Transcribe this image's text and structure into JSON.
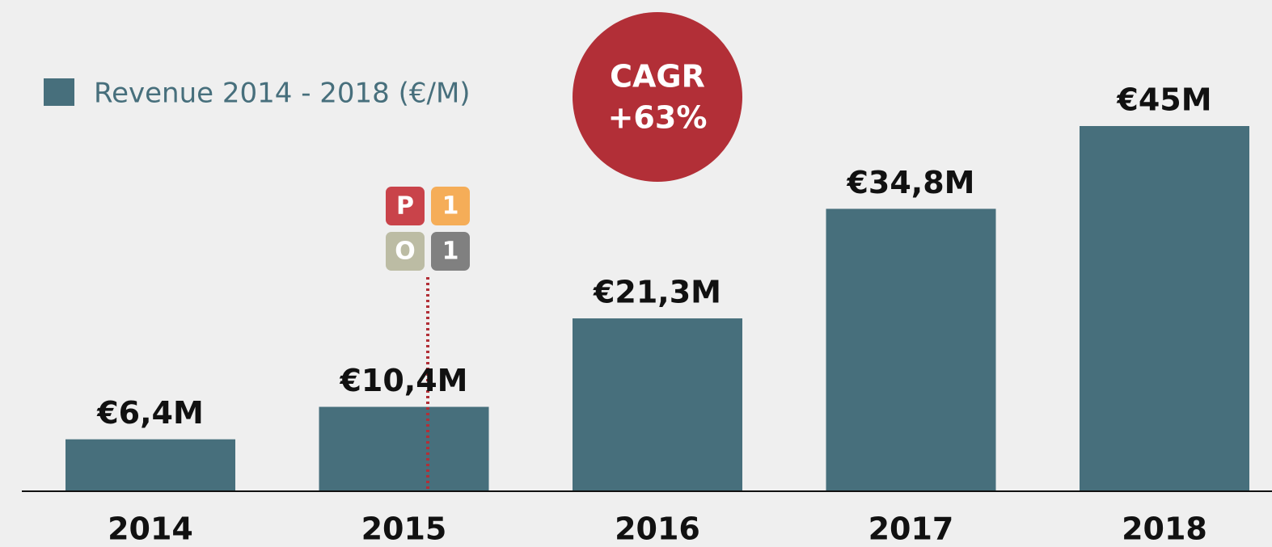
{
  "chart_data": {
    "type": "bar",
    "legend": "Revenue 2014 - 2018 (€/M)",
    "categories": [
      "2014",
      "2015",
      "2016",
      "2017",
      "2018"
    ],
    "values": [
      6.4,
      10.4,
      21.3,
      34.8,
      45
    ],
    "value_labels": [
      "€6,4M",
      "€10,4M",
      "€21,3M",
      "€34,8M",
      "€45M"
    ],
    "color": "#476f7c",
    "ylim": [
      0,
      45
    ],
    "annotation": [
      "CAGR",
      "+63%"
    ],
    "annotation_color": "#b22f37",
    "logo": [
      "P",
      "1",
      "O",
      "1"
    ]
  }
}
